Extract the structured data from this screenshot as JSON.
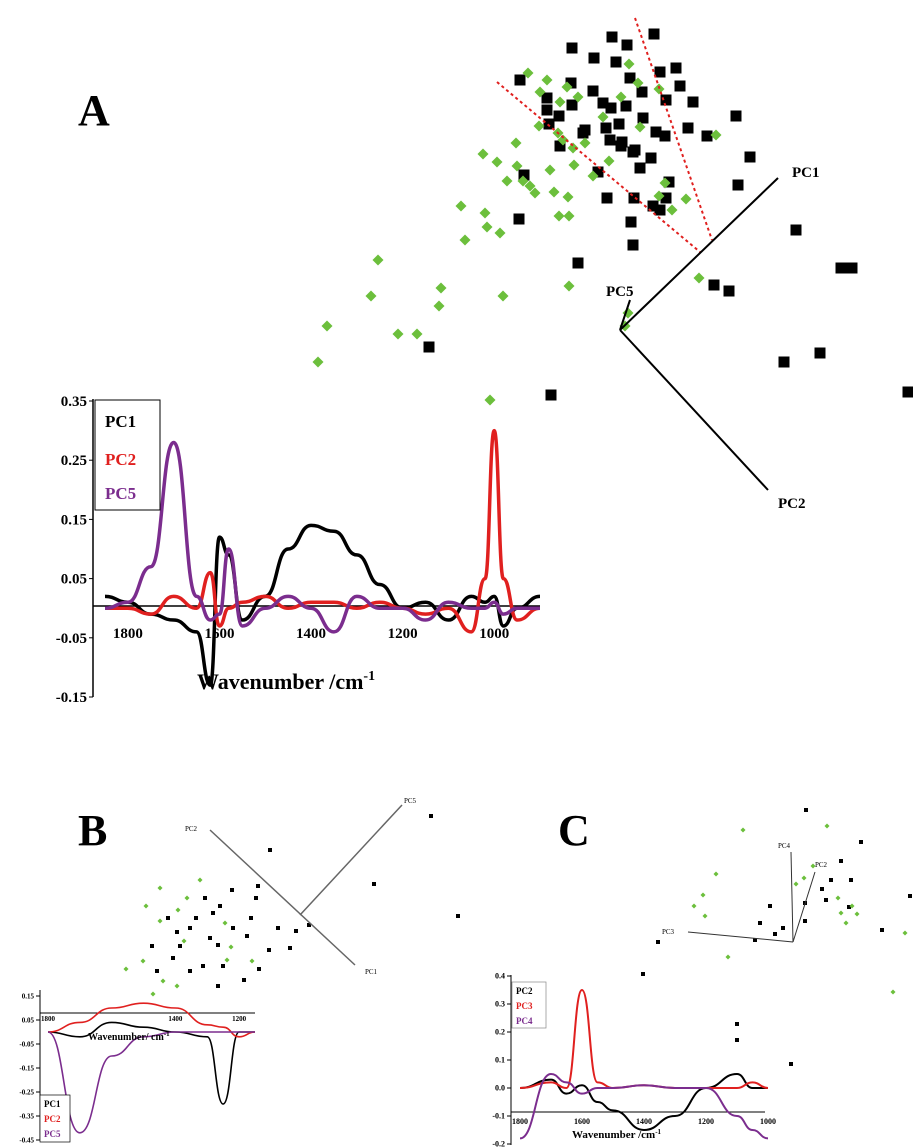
{
  "panels": [
    {
      "label": "A",
      "axes": [
        {
          "name": "PC1"
        },
        {
          "name": "PC2"
        },
        {
          "name": "PC5"
        }
      ],
      "loadings": {
        "ytick_labels": [
          "0.35",
          "0.25",
          "0.15",
          "0.05",
          "-0.05",
          "-0.15"
        ],
        "xtick_labels": [
          "1800",
          "1600",
          "1400",
          "1200",
          "1000"
        ],
        "xlabel": "Wavenumber /cm",
        "xlabel_sup": "-1",
        "legend": [
          {
            "label": "PC1",
            "color": "#000000"
          },
          {
            "label": "PC2",
            "color": "#e0201f"
          },
          {
            "label": "PC5",
            "color": "#7b2d8e"
          }
        ]
      }
    },
    {
      "label": "B",
      "axes": [
        {
          "name": "PC2"
        },
        {
          "name": "PC5"
        },
        {
          "name": "PC1"
        }
      ],
      "loadings": {
        "ytick_labels": [
          "0.15",
          "0.05",
          "-0.05",
          "-0.15",
          "-0.25",
          "-0.35",
          "-0.45"
        ],
        "xtick_labels": [
          "1800",
          "1400",
          "1200"
        ],
        "xlabel": "Wavenumber/ cm",
        "xlabel_sup": "-1",
        "legend": [
          {
            "label": "PC1",
            "color": "#000000"
          },
          {
            "label": "PC2",
            "color": "#e0201f"
          },
          {
            "label": "PC5",
            "color": "#7b2d8e"
          }
        ]
      }
    },
    {
      "label": "C",
      "axes": [
        {
          "name": "PC4"
        },
        {
          "name": "PC2"
        },
        {
          "name": "PC3"
        }
      ],
      "loadings": {
        "ytick_labels": [
          "0.4",
          "0.3",
          "0.2",
          "0.1",
          "0.0",
          "-0.1",
          "-0.2"
        ],
        "xtick_labels": [
          "1800",
          "1600",
          "1400",
          "1200",
          "1000"
        ],
        "xlabel": "Wavenumber /cm",
        "xlabel_sup": "-1",
        "legend": [
          {
            "label": "PC2",
            "color": "#000000"
          },
          {
            "label": "PC3",
            "color": "#e0201f"
          },
          {
            "label": "PC4",
            "color": "#7b2d8e"
          }
        ]
      }
    }
  ],
  "colors": {
    "class1": "#000000",
    "class2": "#6cbf3c",
    "pc1": "#000000",
    "pc2": "#e0201f",
    "pc5": "#7b2d8e",
    "divider": "#e0201f"
  },
  "chart_data": [
    {
      "type": "line",
      "x": [
        1850,
        1800,
        1750,
        1700,
        1650,
        1620,
        1600,
        1580,
        1550,
        1500,
        1450,
        1400,
        1350,
        1300,
        1250,
        1200,
        1150,
        1100,
        1050,
        1020,
        1000,
        980,
        950,
        900
      ],
      "series": [
        {
          "name": "PC1",
          "values": [
            0.02,
            0.01,
            -0.01,
            -0.02,
            -0.04,
            -0.13,
            0.12,
            0.09,
            -0.02,
            0.02,
            0.1,
            0.14,
            0.13,
            0.09,
            0.04,
            0.0,
            0.01,
            -0.02,
            0.02,
            0.01,
            0.02,
            -0.03,
            0.0,
            0.02
          ]
        },
        {
          "name": "PC2",
          "values": [
            0.0,
            0.0,
            -0.01,
            0.02,
            0.0,
            0.06,
            -0.03,
            0.0,
            0.01,
            0.02,
            0.0,
            0.01,
            0.01,
            0.0,
            0.01,
            0.0,
            -0.01,
            0.0,
            -0.04,
            0.05,
            0.3,
            0.05,
            -0.02,
            0.0
          ]
        },
        {
          "name": "PC5",
          "values": [
            0.0,
            0.01,
            0.07,
            0.28,
            0.02,
            -0.02,
            -0.01,
            0.1,
            -0.03,
            0.0,
            0.02,
            0.0,
            -0.04,
            0.02,
            0.0,
            0.0,
            -0.02,
            0.01,
            0.0,
            0.0,
            0.01,
            -0.01,
            0.0,
            0.0
          ]
        }
      ],
      "ylim": [
        -0.15,
        0.35
      ],
      "xlabel": "Wavenumber /cm-1"
    },
    {
      "type": "line",
      "x": [
        1800,
        1700,
        1600,
        1500,
        1400,
        1300,
        1250,
        1200,
        1150
      ],
      "series": [
        {
          "name": "PC1",
          "values": [
            0.0,
            -0.02,
            0.04,
            0.02,
            0.0,
            -0.02,
            -0.3,
            0.0,
            0.0
          ]
        },
        {
          "name": "PC2",
          "values": [
            0.0,
            0.04,
            0.1,
            0.12,
            0.1,
            0.03,
            0.02,
            -0.02,
            0.0
          ]
        },
        {
          "name": "PC5",
          "values": [
            0.0,
            -0.42,
            -0.1,
            -0.02,
            0.0,
            0.0,
            0.0,
            0.0,
            0.0
          ]
        }
      ],
      "ylim": [
        -0.45,
        0.15
      ],
      "xlabel": "Wavenumber/ cm-1"
    },
    {
      "type": "line",
      "x": [
        1800,
        1700,
        1650,
        1600,
        1550,
        1500,
        1400,
        1300,
        1200,
        1100,
        1050,
        1000
      ],
      "series": [
        {
          "name": "PC2",
          "values": [
            0.0,
            0.03,
            -0.02,
            0.01,
            -0.05,
            -0.08,
            -0.15,
            -0.1,
            0.0,
            0.05,
            0.0,
            0.0
          ]
        },
        {
          "name": "PC3",
          "values": [
            0.0,
            0.02,
            0.0,
            0.35,
            0.02,
            0.0,
            0.01,
            0.0,
            0.0,
            0.0,
            0.02,
            0.0
          ]
        },
        {
          "name": "PC4",
          "values": [
            -0.18,
            0.05,
            0.02,
            -0.02,
            0.0,
            0.0,
            0.01,
            0.0,
            0.0,
            -0.1,
            -0.15,
            -0.18
          ]
        }
      ],
      "ylim": [
        -0.2,
        0.4
      ],
      "xlabel": "Wavenumber /cm-1"
    }
  ]
}
